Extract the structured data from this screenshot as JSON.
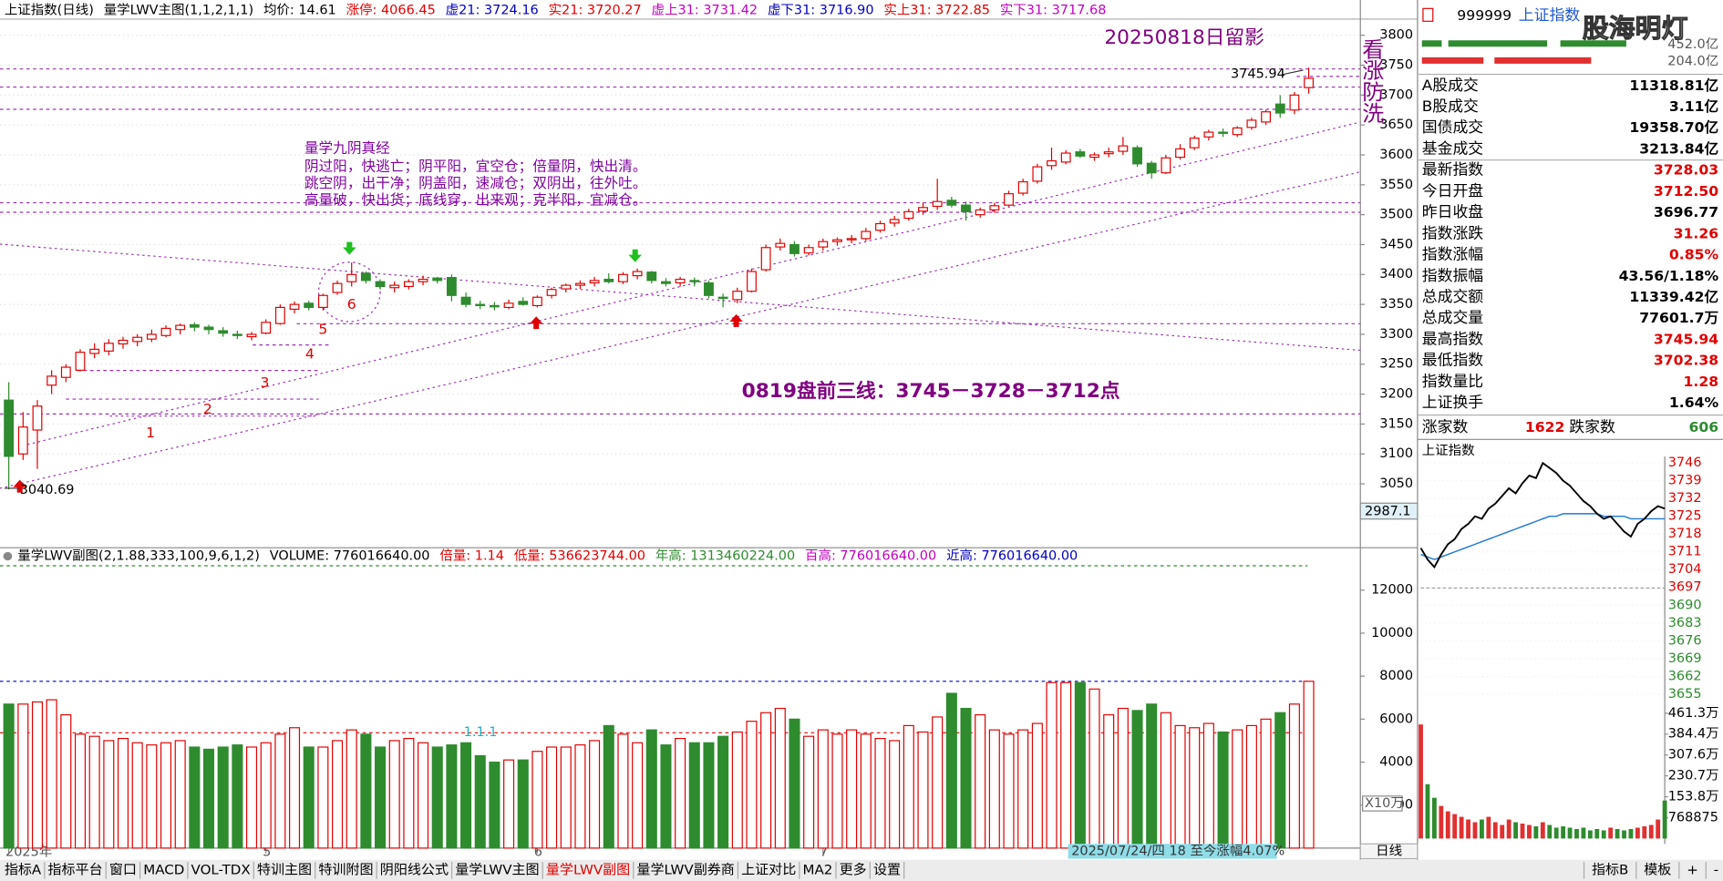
{
  "header": {
    "items": [
      {
        "text": "上证指数(日线)",
        "color": "#000000"
      },
      {
        "text": "量学LWV主图(1,1,2,1,1)",
        "color": "#000000"
      },
      {
        "text": "均价: 14.61",
        "color": "#000000"
      },
      {
        "text": "涨停: 4066.45",
        "color": "#e00000"
      },
      {
        "text": "虚21: 3724.16",
        "color": "#0000c0"
      },
      {
        "text": "实21: 3720.27",
        "color": "#e00000"
      },
      {
        "text": "虚上31: 3731.42",
        "color": "#c000c0"
      },
      {
        "text": "虚下31: 3716.90",
        "color": "#0000c0"
      },
      {
        "text": "实上31: 3722.85",
        "color": "#e00000"
      },
      {
        "text": "实下31: 3717.68",
        "color": "#c000c0"
      }
    ]
  },
  "chart_data": [
    {
      "type": "candlestick",
      "up_color": "#e00000",
      "down_color": "#2e8b2e",
      "grid": true,
      "ylim": [
        2945,
        3827
      ],
      "yticks": [
        3050,
        3100,
        3150,
        3200,
        3250,
        3300,
        3350,
        3400,
        3450,
        3500,
        3550,
        3600,
        3650,
        3700,
        3750,
        3800
      ],
      "xticks": [
        {
          "value": 0,
          "label": "2025年"
        },
        {
          "value": 18,
          "label": "5"
        },
        {
          "value": 37,
          "label": "6"
        },
        {
          "value": 57,
          "label": "7"
        }
      ],
      "open": [
        3190,
        3100,
        3140,
        3215,
        3228,
        3240,
        3268,
        3272,
        3284,
        3288,
        3292,
        3298,
        3308,
        3316,
        3312,
        3306,
        3300,
        3296,
        3302,
        3318,
        3342,
        3352,
        3345,
        3370,
        3388,
        3402,
        3388,
        3378,
        3380,
        3388,
        3394,
        3395,
        3362,
        3350,
        3348,
        3345,
        3355,
        3348,
        3365,
        3376,
        3382,
        3386,
        3392,
        3388,
        3398,
        3404,
        3388,
        3386,
        3390,
        3386,
        3362,
        3358,
        3372,
        3408,
        3446,
        3450,
        3436,
        3446,
        3455,
        3458,
        3460,
        3474,
        3486,
        3494,
        3506,
        3514,
        3524,
        3516,
        3500,
        3508,
        3516,
        3536,
        3556,
        3582,
        3588,
        3605,
        3596,
        3602,
        3606,
        3612,
        3586,
        3570,
        3596,
        3612,
        3630,
        3638,
        3634,
        3646,
        3655,
        3685,
        3675,
        3712.5
      ],
      "high": [
        3220,
        3170,
        3190,
        3240,
        3250,
        3275,
        3285,
        3292,
        3296,
        3300,
        3308,
        3315,
        3318,
        3320,
        3316,
        3312,
        3306,
        3304,
        3325,
        3350,
        3355,
        3356,
        3368,
        3390,
        3420,
        3405,
        3392,
        3388,
        3392,
        3398,
        3396,
        3400,
        3370,
        3356,
        3354,
        3358,
        3362,
        3365,
        3378,
        3385,
        3390,
        3396,
        3402,
        3404,
        3410,
        3406,
        3394,
        3396,
        3395,
        3390,
        3368,
        3378,
        3410,
        3450,
        3460,
        3456,
        3450,
        3460,
        3462,
        3466,
        3478,
        3490,
        3498,
        3510,
        3520,
        3560,
        3530,
        3522,
        3512,
        3520,
        3540,
        3560,
        3585,
        3612,
        3608,
        3610,
        3604,
        3612,
        3630,
        3616,
        3590,
        3600,
        3618,
        3632,
        3642,
        3644,
        3648,
        3662,
        3675,
        3700,
        3705,
        3745.94
      ],
      "low": [
        3040.69,
        3090,
        3075,
        3200,
        3220,
        3238,
        3260,
        3265,
        3276,
        3280,
        3287,
        3295,
        3300,
        3305,
        3300,
        3296,
        3292,
        3290,
        3300,
        3316,
        3335,
        3340,
        3340,
        3366,
        3380,
        3385,
        3375,
        3370,
        3375,
        3382,
        3385,
        3355,
        3345,
        3342,
        3340,
        3342,
        3348,
        3345,
        3360,
        3370,
        3376,
        3380,
        3385,
        3384,
        3392,
        3385,
        3380,
        3380,
        3380,
        3360,
        3345,
        3352,
        3370,
        3405,
        3440,
        3430,
        3432,
        3440,
        3448,
        3452,
        3456,
        3470,
        3480,
        3490,
        3500,
        3508,
        3512,
        3490,
        3495,
        3503,
        3514,
        3532,
        3552,
        3575,
        3584,
        3595,
        3590,
        3596,
        3600,
        3580,
        3560,
        3568,
        3592,
        3608,
        3624,
        3630,
        3630,
        3642,
        3650,
        3662,
        3668,
        3702.38
      ],
      "close": [
        3096,
        3145,
        3180,
        3230,
        3245,
        3270,
        3275,
        3285,
        3290,
        3295,
        3300,
        3310,
        3315,
        3312,
        3308,
        3302,
        3298,
        3300,
        3320,
        3345,
        3350,
        3345,
        3365,
        3385,
        3400,
        3390,
        3380,
        3382,
        3388,
        3392,
        3390,
        3365,
        3350,
        3348,
        3346,
        3352,
        3350,
        3362,
        3375,
        3382,
        3385,
        3390,
        3388,
        3400,
        3405,
        3390,
        3385,
        3392,
        3388,
        3365,
        3360,
        3372,
        3405,
        3445,
        3452,
        3435,
        3445,
        3455,
        3458,
        3460,
        3472,
        3485,
        3492,
        3505,
        3512,
        3522,
        3516,
        3505,
        3508,
        3515,
        3535,
        3555,
        3580,
        3590,
        3603,
        3598,
        3600,
        3605,
        3615,
        3585,
        3570,
        3595,
        3610,
        3628,
        3638,
        3636,
        3645,
        3658,
        3672,
        3670,
        3700,
        3728.03
      ]
    },
    {
      "type": "bar",
      "unit": "X10万",
      "ylim": [
        0,
        13136
      ],
      "yticks": [
        2000,
        4000,
        6000,
        8000,
        10000,
        12000
      ],
      "header": [
        {
          "text": "量学LWV副图(2,1.88,333,100,9,6,1,2)",
          "color": "#000000"
        },
        {
          "text": "VOLUME: 776016640.00",
          "color": "#000000"
        },
        {
          "text": "倍量: 1.14",
          "color": "#e00000"
        },
        {
          "text": "低量: 536623744.00",
          "color": "#e00000"
        },
        {
          "text": "年高: 1313460224.00",
          "color": "#2e8b2e"
        },
        {
          "text": "百高: 776016640.00",
          "color": "#c000c0"
        },
        {
          "text": "近高: 776016640.00",
          "color": "#0000c0"
        }
      ],
      "ref_lines": [
        {
          "value": 13134.6,
          "color": "#2e8b2e"
        },
        {
          "value": 7760.17,
          "color": "#0000c0"
        },
        {
          "value": 5366.24,
          "color": "#e00000"
        }
      ],
      "values": [
        6700,
        6700,
        6800,
        6900,
        6200,
        5300,
        5200,
        5000,
        5100,
        4900,
        4800,
        4900,
        5000,
        4700,
        4600,
        4700,
        4800,
        4700,
        4900,
        5300,
        5600,
        4700,
        4700,
        5000,
        5500,
        5300,
        4700,
        5000,
        5100,
        4900,
        4700,
        4800,
        4900,
        4300,
        4000,
        4100,
        4100,
        4500,
        4700,
        4700,
        4800,
        5000,
        5700,
        5300,
        4900,
        5500,
        4800,
        5100,
        4900,
        4900,
        5200,
        5400,
        5900,
        6300,
        6500,
        6000,
        5200,
        5500,
        5300,
        5500,
        5300,
        5100,
        5000,
        5700,
        5400,
        6100,
        7200,
        6500,
        6200,
        5500,
        5300,
        5500,
        5800,
        7700,
        7700,
        7700,
        7400,
        6200,
        6500,
        6400,
        6700,
        6300,
        5700,
        5600,
        5800,
        5400,
        5500,
        5700,
        6000,
        6300,
        6700,
        7760.17
      ]
    },
    {
      "type": "line",
      "title": "上证指数",
      "prev_close": 3696.77,
      "price_color": "#000000",
      "average_color": "#1e78d2",
      "ylim": [
        3649.2,
        3747.7
      ],
      "yticks": [
        3746,
        3739,
        3732,
        3725,
        3718,
        3711,
        3704,
        3697,
        3690,
        3683,
        3676,
        3669,
        3662,
        3655
      ],
      "price": [
        3712.5,
        3708,
        3705,
        3710,
        3714,
        3716,
        3720,
        3722,
        3725,
        3724,
        3728,
        3730,
        3733,
        3736,
        3734,
        3738,
        3741,
        3740,
        3745.94,
        3744,
        3742,
        3739,
        3737,
        3734,
        3731,
        3729,
        3726,
        3724,
        3725,
        3722,
        3719,
        3717,
        3722,
        3724,
        3727,
        3729,
        3728.03
      ],
      "average": [
        3710,
        3709,
        3708,
        3709,
        3710,
        3711,
        3712,
        3713,
        3714,
        3715,
        3716,
        3717,
        3718,
        3719,
        3720,
        3721,
        3722,
        3723,
        3724,
        3725,
        3725,
        3726,
        3726,
        3726,
        3726,
        3726,
        3726,
        3725,
        3725,
        3725,
        3725,
        3724,
        3724,
        3724,
        3724,
        3724,
        3724
      ],
      "volume_ylim": [
        0,
        476.7
      ],
      "volume_ticks": [
        {
          "value": 461.3,
          "label": "461.3万"
        },
        {
          "value": 384.4,
          "label": "384.4万"
        },
        {
          "value": 307.6,
          "label": "307.6万"
        },
        {
          "value": 230.7,
          "label": "230.7万"
        },
        {
          "value": 153.8,
          "label": "153.8万"
        },
        {
          "value": 76.8875,
          "label": "768875"
        }
      ],
      "volume": [
        420,
        200,
        150,
        120,
        100,
        90,
        80,
        70,
        60,
        70,
        80,
        60,
        50,
        70,
        60,
        55,
        50,
        45,
        60,
        50,
        40,
        45,
        40,
        35,
        40,
        30,
        35,
        30,
        40,
        35,
        30,
        35,
        40,
        45,
        50,
        70,
        140
      ]
    }
  ],
  "annotations": {
    "stamp": "20250818日留影",
    "vertical": "看涨防洗",
    "scripture_title": "量学九阴真经",
    "scripture": [
      "阴过阳，快逃亡；阴平阳，宜空仓；倍量阴，快出清。",
      "跳空阴，出干净；阴盖阳，速减仓；双阴出，往外吐。",
      "高量破，快出货；底线穿，出来观；克半阳，宜减仓。"
    ],
    "forecast": "0819盘前三线：3745－3728－3712点",
    "high_label": "3745.94",
    "low_label": "3040.69",
    "markers": [
      "1",
      "2",
      "3",
      "4",
      "5",
      "6"
    ],
    "vol_marker": "1.1.1",
    "crosshair": "2987.1",
    "period_note": "2025/07/24/四 18 至今涨幅4.07%",
    "period": "日线",
    "watermark": "股海明灯"
  },
  "quote": {
    "code": "999999",
    "name": "上证指数",
    "top_values": [
      "452.0亿",
      "204.0亿"
    ],
    "rows": [
      {
        "label": "A股成交",
        "value": "11318.81亿",
        "color": "#000000"
      },
      {
        "label": "B股成交",
        "value": "3.11亿",
        "color": "#000000"
      },
      {
        "label": "国债成交",
        "value": "19358.70亿",
        "color": "#000000"
      },
      {
        "label": "基金成交",
        "value": "3213.84亿",
        "color": "#000000"
      },
      {
        "label": "最新指数",
        "value": "3728.03",
        "color": "#e00000"
      },
      {
        "label": "今日开盘",
        "value": "3712.50",
        "color": "#e00000"
      },
      {
        "label": "昨日收盘",
        "value": "3696.77",
        "color": "#000000"
      },
      {
        "label": "指数涨跌",
        "value": "31.26",
        "color": "#e00000"
      },
      {
        "label": "指数涨幅",
        "value": "0.85%",
        "color": "#e00000"
      },
      {
        "label": "指数振幅",
        "value": "43.56/1.18%",
        "color": "#000000"
      },
      {
        "label": "总成交额",
        "value": "11339.42亿",
        "color": "#000000"
      },
      {
        "label": "总成交量",
        "value": "77601.7万",
        "color": "#000000"
      },
      {
        "label": "最高指数",
        "value": "3745.94",
        "color": "#e00000"
      },
      {
        "label": "最低指数",
        "value": "3702.38",
        "color": "#e00000"
      },
      {
        "label": "指数量比",
        "value": "1.28",
        "color": "#e00000"
      },
      {
        "label": "上证换手",
        "value": "1.64%",
        "color": "#000000"
      }
    ],
    "rise_label": "涨家数",
    "rise": "1622",
    "fall_label": "跌家数",
    "fall": "606"
  },
  "tabs": {
    "left": [
      "指标A",
      "指标平台",
      "窗口",
      "MACD",
      "VOL-TDX",
      "特训主图",
      "特训附图",
      "阴阳线公式",
      "量学LWV主图",
      "量学LWV副图",
      "量学LWV副券商",
      "上证对比",
      "MA2",
      "更多",
      "设置"
    ],
    "active": 9,
    "right": [
      "指标B",
      "模板",
      "+",
      "-"
    ]
  }
}
